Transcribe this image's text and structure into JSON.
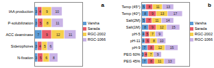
{
  "chart_data": [
    {
      "type": "bar",
      "title": "a",
      "orientation": "horizontal",
      "stacked": true,
      "data_labels": true,
      "tick_labels": "y",
      "legend": "right",
      "categories": [
        "IAA production",
        "P-solubilization",
        "ACC deaminase",
        "Siderophores",
        "N-fixation"
      ],
      "xlim": [
        0,
        45
      ],
      "series": [
        {
          "name": "Varsha",
          "color": "#5b9bd5",
          "values": [
            3,
            3,
            7,
            3,
            3
          ]
        },
        {
          "name": "Sarada",
          "color": "#e85c6a",
          "values": [
            4,
            5,
            9,
            4,
            5
          ]
        },
        {
          "name": "RGC-2002",
          "color": "#f6d04d",
          "values": [
            9,
            8,
            12,
            5,
            6
          ]
        },
        {
          "name": "RGC-1066",
          "color": "#c9b3e6",
          "values": [
            10,
            11,
            11,
            6,
            8
          ]
        }
      ]
    },
    {
      "type": "bar",
      "title": "b",
      "orientation": "horizontal",
      "stacked": true,
      "data_labels": true,
      "tick_labels": "y",
      "legend": "right",
      "categories": [
        "Temp (45°)",
        "Temp (40°)",
        "Salt(2M)",
        "Salt(1M)",
        "pH-5",
        "pH-11",
        "pH-9",
        "PEG 60%",
        "PEG 45%"
      ],
      "xlim": [
        0,
        55
      ],
      "series": [
        {
          "name": "Varsha",
          "color": "#5b9bd5",
          "values": [
            5,
            8,
            5,
            8,
            4,
            4,
            7,
            3,
            7
          ]
        },
        {
          "name": "Sarada",
          "color": "#e85c6a",
          "values": [
            8,
            9,
            7,
            9,
            5,
            6,
            8,
            4,
            8
          ]
        },
        {
          "name": "RGC-2002",
          "color": "#f6d04d",
          "values": [
            11,
            13,
            11,
            12,
            7,
            8,
            12,
            7,
            11
          ]
        },
        {
          "name": "RGC-1066",
          "color": "#c9b3e6",
          "values": [
            13,
            17,
            14,
            15,
            9,
            10,
            15,
            9,
            13
          ]
        }
      ]
    }
  ]
}
